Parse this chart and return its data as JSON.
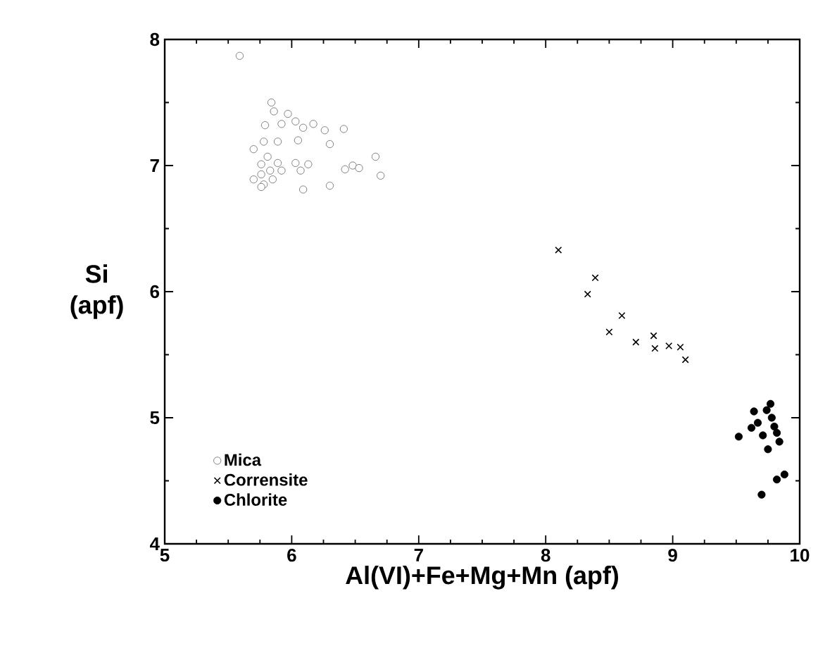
{
  "chart_data": {
    "type": "scatter",
    "xlabel": "Al(VI)+Fe+Mg+Mn (apf)",
    "ylabel": "Si (apf)",
    "xlim": [
      5,
      10
    ],
    "ylim": [
      4,
      8
    ],
    "xticks": [
      5,
      6,
      7,
      8,
      9,
      10
    ],
    "yticks": [
      4,
      5,
      6,
      7,
      8
    ],
    "grid": false,
    "legend": "bottom left",
    "series": [
      {
        "name": "Mica",
        "color": "#666666",
        "marker": "circle",
        "x": [
          5.59,
          5.84,
          5.86,
          5.79,
          5.92,
          5.97,
          6.03,
          6.09,
          6.17,
          6.26,
          6.41,
          6.3,
          6.05,
          5.7,
          5.78,
          5.89,
          5.81,
          5.76,
          5.89,
          5.7,
          5.78,
          5.85,
          5.92,
          6.03,
          6.13,
          6.07,
          6.09,
          6.3,
          6.42,
          6.48,
          6.53,
          6.66,
          6.7,
          5.76,
          5.83,
          5.76
        ],
        "values": [
          7.87,
          7.5,
          7.43,
          7.32,
          7.33,
          7.41,
          7.35,
          7.3,
          7.33,
          7.28,
          7.29,
          7.17,
          7.2,
          7.13,
          7.19,
          7.19,
          7.07,
          7.01,
          7.02,
          6.89,
          6.85,
          6.89,
          6.96,
          7.02,
          7.01,
          6.96,
          6.81,
          6.84,
          6.97,
          7.0,
          6.98,
          7.07,
          6.92,
          6.93,
          6.96,
          6.83
        ]
      },
      {
        "name": "Corrensite",
        "color": "#000000",
        "marker": "cross",
        "x": [
          8.1,
          8.39,
          8.33,
          8.6,
          8.5,
          8.71,
          8.85,
          8.86,
          8.97,
          9.06,
          9.1
        ],
        "values": [
          6.33,
          6.11,
          5.98,
          5.81,
          5.68,
          5.6,
          5.65,
          5.55,
          5.57,
          5.56,
          5.46
        ]
      },
      {
        "name": "Chlorite",
        "color": "#000000",
        "marker": "circle",
        "x": [
          9.52,
          9.77,
          9.64,
          9.67,
          9.78,
          9.82,
          9.75,
          9.71,
          9.84,
          9.62,
          9.88,
          9.82,
          9.7,
          9.74,
          9.8
        ],
        "values": [
          4.85,
          5.11,
          5.05,
          4.96,
          5.0,
          4.88,
          4.75,
          4.86,
          4.81,
          4.92,
          4.55,
          4.51,
          4.39,
          5.06,
          4.93
        ]
      }
    ]
  }
}
